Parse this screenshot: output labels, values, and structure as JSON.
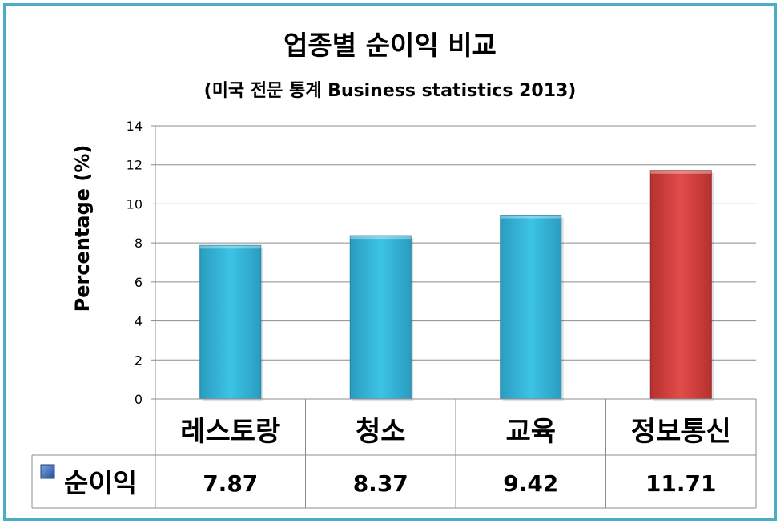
{
  "colors": {
    "border": "#4bacc6",
    "bar_blue": "#31b4d8",
    "bar_red": "#d9403e"
  },
  "chart_data": {
    "type": "bar",
    "title": "업종별 순이익 비교",
    "subtitle": "(미국 전문 통계 Business statistics  2013)",
    "ylabel": "Percentage (%)",
    "ylim": [
      0,
      14
    ],
    "yticks": [
      "0",
      "2",
      "4",
      "6",
      "8",
      "10",
      "12",
      "14"
    ],
    "grid": true,
    "categories": [
      "레스토랑",
      "청소",
      "교육",
      "정보통신"
    ],
    "series": [
      {
        "name": "순이익",
        "values": [
          7.87,
          8.37,
          9.42,
          11.71
        ],
        "value_labels": [
          "7.87",
          "8.37",
          "9.42",
          "11.71"
        ]
      }
    ],
    "legend": "data-table"
  }
}
